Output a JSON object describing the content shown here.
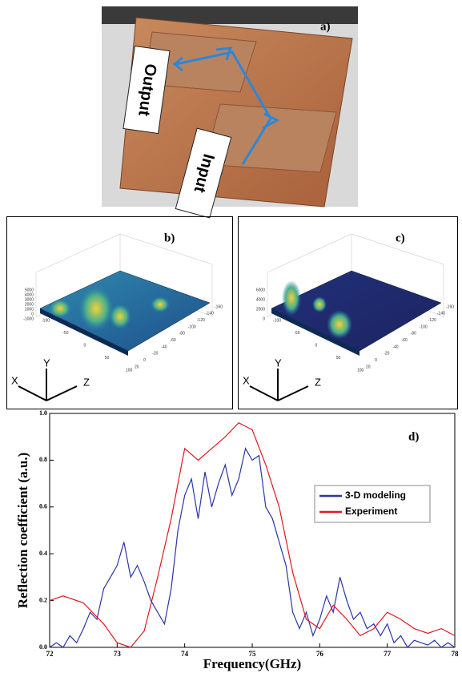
{
  "panels": {
    "a": {
      "label": "a)",
      "output": "Output",
      "input": "Input"
    },
    "b": {
      "label": "b)",
      "z_ticks": [
        "5000",
        "4000",
        "3000",
        "2000",
        "1000",
        "0",
        "-1000"
      ],
      "x_ticks": [
        "-100",
        "-50",
        "0",
        "50",
        "100"
      ],
      "y_ticks": [
        "20",
        "0",
        "-20",
        "-40",
        "-60",
        "-80",
        "-100",
        "-120",
        "-140",
        "-160"
      ],
      "axes": [
        "X",
        "Y",
        "Z"
      ]
    },
    "c": {
      "label": "c)",
      "z_ticks": [
        "6000",
        "4000",
        "2000",
        "0"
      ],
      "x_ticks": [
        "-100",
        "-50",
        "0",
        "50",
        "100"
      ],
      "y_ticks": [
        "20",
        "0",
        "-20",
        "-40",
        "-60",
        "-80",
        "-100",
        "-120",
        "-140",
        "-160"
      ],
      "axes": [
        "X",
        "Y",
        "Z"
      ]
    }
  },
  "chart_data": {
    "type": "line",
    "label": "d)",
    "x_label": "Frequency(GHz)",
    "y_label": "Reflection coefficient (a.u.)",
    "xlim": [
      72,
      78
    ],
    "ylim": [
      0,
      1
    ],
    "xticks": [
      72,
      73,
      74,
      75,
      76,
      77,
      78
    ],
    "yticks": [
      {
        "value": 0,
        "label": "0.0"
      },
      0.2,
      0.4,
      0.6,
      0.8,
      {
        "value": 1,
        "label": "1.0"
      }
    ],
    "legend": "center right",
    "series": [
      {
        "name": "3-D modeling",
        "color": "#2b35a8",
        "x": [
          72.0,
          72.1,
          72.2,
          72.3,
          72.4,
          72.5,
          72.6,
          72.7,
          72.8,
          72.9,
          73.0,
          73.1,
          73.2,
          73.3,
          73.4,
          73.5,
          73.6,
          73.7,
          73.8,
          73.9,
          74.0,
          74.1,
          74.2,
          74.3,
          74.4,
          74.5,
          74.6,
          74.7,
          74.8,
          74.9,
          75.0,
          75.1,
          75.2,
          75.3,
          75.4,
          75.5,
          75.6,
          75.7,
          75.8,
          75.9,
          76.0,
          76.1,
          76.2,
          76.3,
          76.4,
          76.5,
          76.6,
          76.7,
          76.8,
          76.9,
          77.0,
          77.1,
          77.2,
          77.3,
          77.4,
          77.5,
          77.6,
          77.7,
          77.8,
          77.9,
          78.0
        ],
        "values": [
          0.0,
          0.02,
          0.0,
          0.05,
          0.02,
          0.08,
          0.15,
          0.12,
          0.25,
          0.3,
          0.35,
          0.45,
          0.3,
          0.35,
          0.28,
          0.2,
          0.15,
          0.1,
          0.25,
          0.5,
          0.65,
          0.72,
          0.55,
          0.75,
          0.6,
          0.7,
          0.78,
          0.65,
          0.72,
          0.85,
          0.8,
          0.82,
          0.6,
          0.55,
          0.45,
          0.35,
          0.15,
          0.08,
          0.15,
          0.05,
          0.12,
          0.22,
          0.15,
          0.3,
          0.2,
          0.12,
          0.15,
          0.08,
          0.1,
          0.05,
          0.1,
          0.02,
          0.05,
          0.0,
          0.03,
          0.02,
          0.01,
          0.03,
          0.0,
          0.02,
          0.0
        ]
      },
      {
        "name": "Experiment",
        "color": "#e0181f",
        "x": [
          72.0,
          72.2,
          72.5,
          72.8,
          73.0,
          73.2,
          73.4,
          73.6,
          73.8,
          74.0,
          74.2,
          74.4,
          74.6,
          74.8,
          75.0,
          75.2,
          75.4,
          75.6,
          75.8,
          76.0,
          76.2,
          76.4,
          76.6,
          76.8,
          77.0,
          77.2,
          77.4,
          77.6,
          77.8,
          78.0
        ],
        "values": [
          0.2,
          0.22,
          0.19,
          0.1,
          0.02,
          0.0,
          0.07,
          0.3,
          0.55,
          0.85,
          0.8,
          0.85,
          0.9,
          0.96,
          0.93,
          0.78,
          0.6,
          0.32,
          0.12,
          0.08,
          0.18,
          0.12,
          0.05,
          0.08,
          0.15,
          0.12,
          0.08,
          0.06,
          0.08,
          0.05
        ]
      }
    ]
  }
}
